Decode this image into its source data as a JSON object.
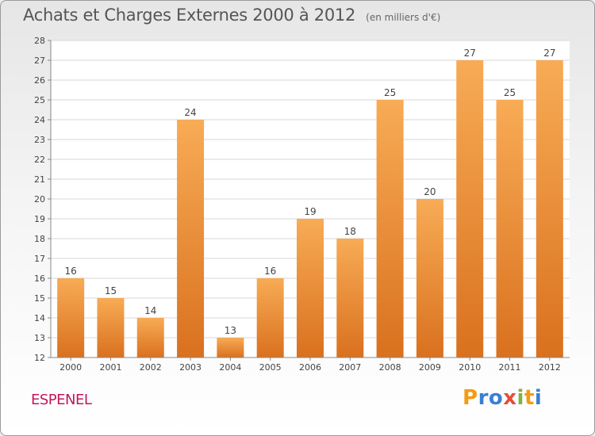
{
  "header": {
    "title": "Achats et Charges Externes 2000 à 2012",
    "subtitle": "(en milliers d'€)"
  },
  "footer": {
    "place": "ESPENEL",
    "logo_letters": [
      "P",
      "r",
      "o",
      "x",
      "i",
      "t",
      "i"
    ],
    "logo_colors": [
      "#f39c12",
      "#3a7fd5",
      "#3a7fd5",
      "#e74c3c",
      "#7cb342",
      "#f39c12",
      "#3a7fd5"
    ]
  },
  "colors": {
    "bar_light": "#f8ab55",
    "bar_dark": "#d9711f",
    "axis": "#8a8a8a",
    "grid": "#d7d7d7",
    "label": "#444444"
  },
  "chart_data": {
    "type": "bar",
    "categories": [
      "2000",
      "2001",
      "2002",
      "2003",
      "2004",
      "2005",
      "2006",
      "2007",
      "2008",
      "2009",
      "2010",
      "2011",
      "2012"
    ],
    "values": [
      16,
      15,
      14,
      24,
      13,
      16,
      19,
      18,
      25,
      20,
      27,
      25,
      27
    ],
    "title": "Achats et Charges Externes 2000 à 2012",
    "subtitle": "(en milliers d'€)",
    "xlabel": "",
    "ylabel": "",
    "ylim": [
      12,
      28
    ],
    "yticks": [
      12,
      13,
      14,
      15,
      16,
      17,
      18,
      19,
      20,
      21,
      22,
      23,
      24,
      25,
      26,
      27,
      28
    ],
    "grid": true,
    "data_labels": true
  }
}
